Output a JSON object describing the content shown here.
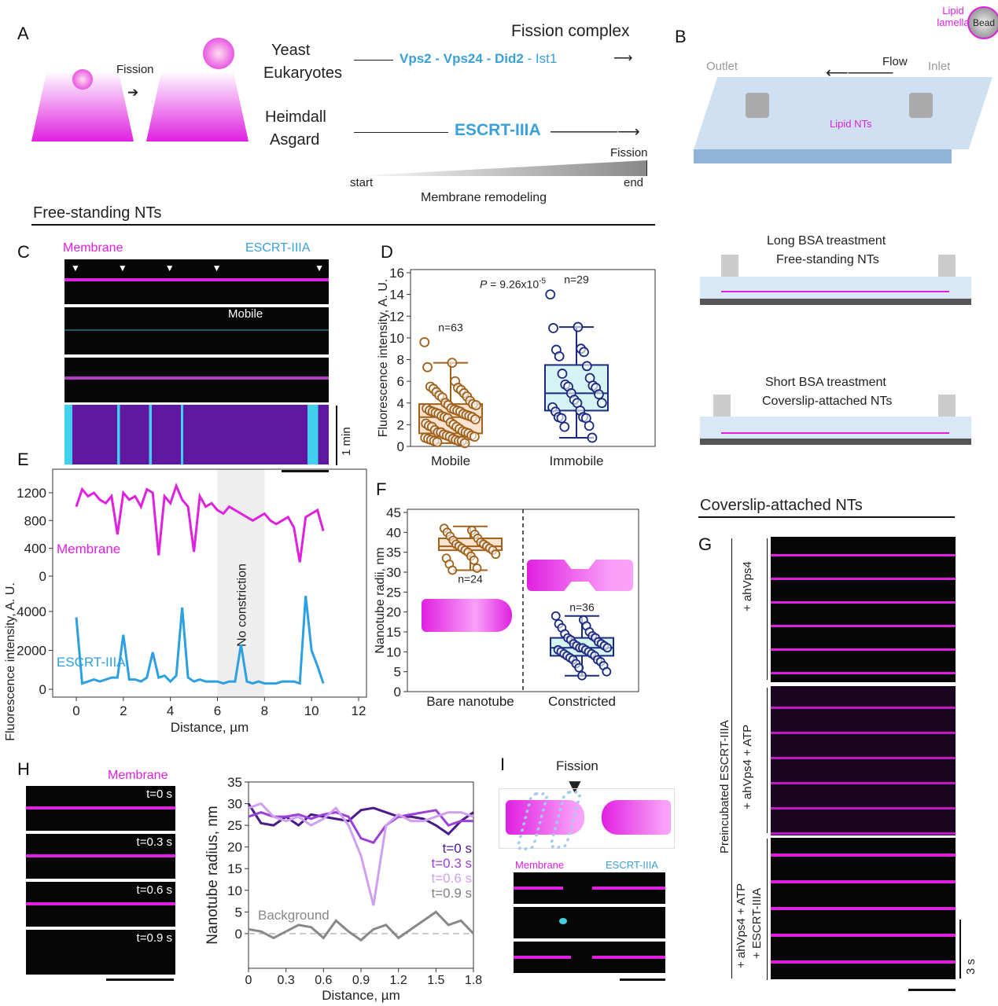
{
  "panels": {
    "A": "A",
    "B": "B",
    "C": "C",
    "D": "D",
    "E": "E",
    "F": "F",
    "G": "G",
    "H": "H",
    "I": "I"
  },
  "panelA": {
    "fission": "Fission",
    "yeast": "Yeast",
    "eukaryotes": "Eukaryotes",
    "heimdall": "Heimdall",
    "asgard": "Asgard",
    "fission_complex": "Fission complex",
    "vps2": "Vps2",
    "vps24": "Vps24",
    "did2": "Did2",
    "ist1": "Ist1",
    "dash": " - ",
    "escrt": "ESCRT-IIIA",
    "fission_end": "Fission",
    "start": "start",
    "end": "end",
    "remodeling": "Membrane remodeling"
  },
  "panelB": {
    "outlet": "Outlet",
    "inlet": "Inlet",
    "flow": "Flow",
    "lipid_lamella": "Lipid lamella",
    "bead": "Bead",
    "lipid_nts": "Lipid NTs",
    "long_bsa": "Long BSA treastment",
    "free_standing": "Free-standing NTs",
    "short_bsa": "Short BSA treastment",
    "coverslip_attached": "Coverslip-attached NTs"
  },
  "sections": {
    "free_standing": "Free-standing NTs",
    "coverslip_attached": "Coverslip-attached NTs"
  },
  "panelC": {
    "membrane": "Membrane",
    "escrt": "ESCRT-IIIA",
    "mobile": "Mobile",
    "scale": "1 min"
  },
  "panelG": {
    "preincubated": "Preincubated ESCRT-IIIA",
    "row1": "+ ahVps4",
    "row2": "+ ahVps4 + ATP",
    "row3a": "+ ahVps4 + ATP",
    "row3b": "+ ESCRT-IIIA",
    "scale": "3 s"
  },
  "panelH": {
    "membrane": "Membrane",
    "times": [
      "t=0 s",
      "t=0.3 s",
      "t=0.6 s",
      "t=0.9 s"
    ]
  },
  "panelI": {
    "fission": "Fission",
    "membrane": "Membrane",
    "escrt": "ESCRT-IIIA"
  },
  "colors": {
    "magenta": "#e020e0",
    "cyan": "#3aa0d8",
    "brown": "#a0601a",
    "navy": "#1a2a80"
  },
  "chart_data": [
    {
      "id": "D",
      "type": "box-scatter",
      "ylabel": "Fluorescence intensity, A. U.",
      "ylim": [
        0,
        16
      ],
      "yticks": [
        0,
        2,
        4,
        6,
        8,
        10,
        12,
        14,
        16
      ],
      "categories": [
        "Mobile",
        "Immobile"
      ],
      "annotation": "P = 9.26x10-5",
      "p_prefix": "P",
      "p_text": " = 9.26x10",
      "p_exp": "-5",
      "series": [
        {
          "name": "Mobile",
          "n_label": "n=63",
          "box": {
            "min": 0.3,
            "q1": 1.2,
            "median": 2.7,
            "q3": 3.9,
            "max": 7.7
          },
          "values": [
            9.6,
            7.7,
            7.3,
            6.0,
            5.5,
            5.4,
            5.3,
            5.2,
            5.0,
            4.9,
            4.7,
            4.6,
            4.5,
            4.2,
            4.0,
            3.9,
            3.8,
            3.8,
            3.5,
            3.5,
            3.4,
            3.3,
            3.3,
            3.2,
            3.2,
            3.1,
            3.0,
            3.0,
            2.9,
            2.8,
            2.8,
            2.7,
            2.7,
            2.6,
            2.5,
            2.2,
            2.1,
            2.0,
            1.9,
            1.8,
            1.8,
            1.6,
            1.5,
            1.4,
            1.3,
            1.3,
            1.3,
            1.2,
            1.1,
            1.0,
            1.0,
            0.9,
            0.9,
            0.8,
            0.7,
            0.7,
            0.6,
            0.6,
            0.5,
            0.5,
            0.5,
            0.4,
            0.3
          ]
        },
        {
          "name": "Immobile",
          "n_label": "n=29",
          "box": {
            "min": 0.8,
            "q1": 3.3,
            "median": 4.9,
            "q3": 7.5,
            "max": 11.0
          },
          "values": [
            14.0,
            11.0,
            10.9,
            9.0,
            8.9,
            8.7,
            8.3,
            7.4,
            6.7,
            6.3,
            5.7,
            5.6,
            5.5,
            5.4,
            4.9,
            4.8,
            4.3,
            4.0,
            4.0,
            3.6,
            3.3,
            3.2,
            2.7,
            2.7,
            2.6,
            2.6,
            1.9,
            1.8,
            0.8
          ]
        }
      ]
    },
    {
      "id": "E",
      "type": "line",
      "xlabel": "Distance, µm",
      "ylabel": "Fluorescence intensity, A. U.",
      "xlim": [
        -0.8,
        12
      ],
      "xticks": [
        0,
        2,
        4,
        6,
        8,
        10,
        12
      ],
      "shaded_region": [
        6,
        8
      ],
      "shaded_label": "No constriction",
      "x_step": 0.25,
      "series": [
        {
          "name": "Membrane",
          "ylim": [
            0,
            1400
          ],
          "yticks": [
            0,
            400,
            800,
            1200
          ],
          "values": [
            1000,
            1250,
            1150,
            1200,
            1100,
            1050,
            1150,
            600,
            1200,
            1100,
            1150,
            1000,
            1250,
            1200,
            300,
            1150,
            1050,
            1300,
            1100,
            1000,
            350,
            1150,
            1000,
            1050,
            950,
            900,
            1000,
            950,
            900,
            850,
            800,
            850,
            900,
            800,
            750,
            800,
            850,
            700,
            200,
            850,
            900,
            950,
            650
          ]
        },
        {
          "name": "ESCRT-IIIA",
          "ylim": [
            0,
            5500
          ],
          "yticks": [
            0,
            2000,
            4000
          ],
          "values": [
            3700,
            300,
            400,
            500,
            400,
            500,
            600,
            600,
            2800,
            500,
            500,
            400,
            600,
            1900,
            600,
            700,
            400,
            700,
            4200,
            600,
            400,
            500,
            400,
            400,
            400,
            300,
            400,
            400,
            2300,
            400,
            300,
            400,
            300,
            300,
            300,
            400,
            400,
            400,
            300,
            4800,
            2000,
            1200,
            300
          ]
        }
      ]
    },
    {
      "id": "F",
      "type": "box-scatter",
      "ylabel": "Nanotube radii, nm",
      "ylim": [
        0,
        45
      ],
      "yticks": [
        0,
        5,
        10,
        15,
        20,
        25,
        30,
        35,
        40,
        45
      ],
      "categories": [
        "Bare nanotube",
        "Constricted"
      ],
      "series": [
        {
          "name": "Bare nanotube",
          "n_label": "n=24",
          "box": {
            "min": 30.5,
            "q1": 35.5,
            "median": 36.5,
            "q3": 38.5,
            "max": 41.5
          },
          "values": [
            41,
            40.5,
            40,
            39.5,
            39,
            38.5,
            38,
            37.5,
            37,
            37,
            36.5,
            36.5,
            36,
            36,
            35.5,
            35.5,
            35,
            34.5,
            34,
            33.5,
            33,
            32,
            31,
            30.5
          ]
        },
        {
          "name": "Constricted",
          "n_label": "n=36",
          "box": {
            "min": 4,
            "q1": 9,
            "median": 11,
            "q3": 13.5,
            "max": 19
          },
          "values": [
            19,
            18,
            17,
            16.5,
            16,
            15,
            14.5,
            14,
            13.5,
            13.5,
            13,
            12.5,
            12,
            12,
            11.5,
            11.5,
            11,
            11,
            11,
            10.5,
            10.5,
            10,
            10,
            9.5,
            9.5,
            9,
            9,
            8.5,
            8,
            8,
            7.5,
            7,
            6.5,
            6,
            5,
            4
          ]
        }
      ]
    },
    {
      "id": "H",
      "type": "line",
      "xlabel": "Distance, µm",
      "ylabel": "Nanotube radius, nm",
      "xlim": [
        0,
        1.8
      ],
      "xticks": [
        0,
        0.3,
        0.6,
        0.9,
        1.2,
        1.5,
        1.8
      ],
      "ylim": [
        -8,
        35
      ],
      "yticks": [
        0,
        5,
        10,
        15,
        20,
        25,
        30,
        35
      ],
      "x_step": 0.1,
      "reference_line": 0,
      "series": [
        {
          "name": "t=0 s",
          "color": "#4a1a8a",
          "values": [
            30,
            25.5,
            25,
            27,
            25,
            27.5,
            27,
            26.5,
            26,
            28.5,
            29,
            28,
            27,
            27,
            26.5,
            25,
            23,
            26,
            28
          ]
        },
        {
          "name": "t=0.3 s",
          "color": "#9a40d8",
          "values": [
            27,
            28,
            27,
            27,
            27.5,
            26.5,
            27.5,
            28,
            27,
            22,
            21,
            25,
            27,
            27.5,
            28,
            28.5,
            25,
            26,
            26
          ]
        },
        {
          "name": "t=0.6 s",
          "color": "#d0a0f0",
          "values": [
            29,
            30,
            27,
            26,
            27,
            25,
            26.5,
            29,
            25,
            18,
            6.5,
            25,
            27.5,
            26,
            26,
            27,
            28,
            28,
            27
          ]
        },
        {
          "name": "t=0.9 s",
          "color": "#808080",
          "values": [
            null
          ]
        },
        {
          "name": "Background",
          "color": "#888888",
          "values": [
            1,
            0.5,
            -1,
            0.5,
            2,
            1.5,
            -1,
            3,
            0.5,
            -1.5,
            1,
            2,
            -1,
            1,
            3,
            5,
            2,
            3,
            0
          ]
        }
      ]
    }
  ]
}
